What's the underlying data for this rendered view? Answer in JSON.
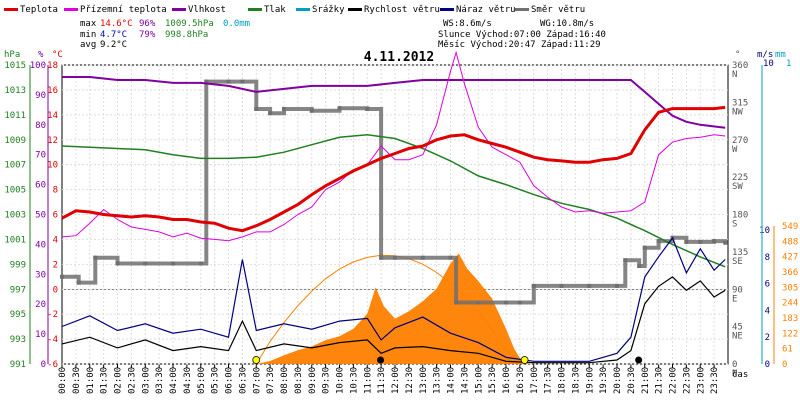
{
  "chart_data": {
    "type": "line",
    "title": "4.11.2012",
    "xlabel": "čas",
    "legend": [
      {
        "name": "Teplota",
        "color": "#e00000"
      },
      {
        "name": "Přízemní teplota",
        "color": "#e000e0"
      },
      {
        "name": "Vlhkost",
        "color": "#8000a0"
      },
      {
        "name": "Tlak",
        "color": "#208020"
      },
      {
        "name": "Srážky",
        "color": "#00a0c0"
      },
      {
        "name": "Rychlost větru",
        "color": "#000000"
      },
      {
        "name": "Náraz větru",
        "color": "#000080"
      },
      {
        "name": "Směr větru",
        "color": "#707070"
      }
    ],
    "stats": {
      "max_label": "max",
      "min_label": "min",
      "avg_label": "avg",
      "max_temp": "14.6°C",
      "max_hum": "96%",
      "max_press": "1009.5hPa",
      "max_rain": "0.0mm",
      "min_temp": "4.7°C",
      "min_hum": "79%",
      "min_press": "998.8hPa",
      "avg_temp": "9.2°C",
      "ws": "WS:8.6m/s",
      "wg": "WG:10.8m/s",
      "sun": "Slunce Východ:07:00  Západ:16:40",
      "moon": "Měsíc  Východ:20:47  Západ:11:29"
    },
    "axes": {
      "left_units": {
        "hpa": "hPa",
        "pct": "%",
        "deg": "°C"
      },
      "right_units": {
        "deg": "°",
        "ms": "m/s",
        "mm": "mm",
        "wm2": "W/m²"
      },
      "hpa_ticks": [
        "1015",
        "1013",
        "1011",
        "1009",
        "1007",
        "1005",
        "1003",
        "1001",
        "999",
        "997",
        "995",
        "993",
        "991"
      ],
      "pct_ticks": [
        "100",
        "90",
        "80",
        "70",
        "60",
        "50",
        "40",
        "30",
        "20",
        "10",
        "0"
      ],
      "temp_ticks": [
        "18",
        "16",
        "14",
        "12",
        "10",
        "8",
        "6",
        "4",
        "2",
        "0",
        "-2",
        "-4",
        "-6"
      ],
      "dir_ticks": [
        {
          "deg": "360",
          "lbl": "N"
        },
        {
          "deg": "315",
          "lbl": "NW"
        },
        {
          "deg": "270",
          "lbl": "W"
        },
        {
          "deg": "225",
          "lbl": "SW"
        },
        {
          "deg": "180",
          "lbl": "S"
        },
        {
          "deg": "135",
          "lbl": "SE"
        },
        {
          "deg": "90",
          "lbl": "E"
        },
        {
          "deg": "45",
          "lbl": "NE"
        },
        {
          "deg": "0",
          "lbl": "N"
        }
      ],
      "wind_top": "10",
      "rain_top": "1",
      "wind_ticks": [
        "10",
        "8",
        "6",
        "4",
        "2",
        "0"
      ],
      "sol_ticks": [
        "549",
        "488",
        "427",
        "366",
        "305",
        "244",
        "183",
        "122",
        "61",
        "0"
      ],
      "time_ticks": [
        "00:00",
        "00:30",
        "01:00",
        "01:30",
        "02:00",
        "02:30",
        "03:00",
        "03:30",
        "04:00",
        "04:30",
        "05:00",
        "05:30",
        "06:00",
        "06:30",
        "07:00",
        "07:30",
        "08:00",
        "08:30",
        "09:00",
        "09:30",
        "10:00",
        "10:30",
        "11:00",
        "11:30",
        "12:00",
        "12:30",
        "13:00",
        "13:30",
        "14:00",
        "14:30",
        "15:00",
        "15:30",
        "16:00",
        "16:30",
        "17:00",
        "17:30",
        "18:00",
        "18:30",
        "19:00",
        "19:30",
        "20:00",
        "20:30",
        "21:00",
        "21:30",
        "22:00",
        "22:30",
        "23:00",
        "23:30"
      ]
    },
    "series": {
      "temperature_c": [
        [
          0,
          5.7
        ],
        [
          0.5,
          6.3
        ],
        [
          1,
          6.2
        ],
        [
          1.5,
          6.0
        ],
        [
          2,
          5.9
        ],
        [
          2.5,
          5.8
        ],
        [
          3,
          5.9
        ],
        [
          3.5,
          5.8
        ],
        [
          4,
          5.6
        ],
        [
          4.5,
          5.6
        ],
        [
          5,
          5.4
        ],
        [
          5.5,
          5.3
        ],
        [
          6,
          4.9
        ],
        [
          6.5,
          4.7
        ],
        [
          7,
          5.1
        ],
        [
          7.5,
          5.6
        ],
        [
          8,
          6.2
        ],
        [
          8.5,
          6.8
        ],
        [
          9,
          7.6
        ],
        [
          9.5,
          8.3
        ],
        [
          10,
          8.9
        ],
        [
          10.5,
          9.5
        ],
        [
          11,
          10.0
        ],
        [
          11.5,
          10.5
        ],
        [
          12,
          10.9
        ],
        [
          12.5,
          11.3
        ],
        [
          13,
          11.5
        ],
        [
          13.5,
          12.0
        ],
        [
          14,
          12.3
        ],
        [
          14.5,
          12.4
        ],
        [
          15,
          12.0
        ],
        [
          15.5,
          11.7
        ],
        [
          16,
          11.4
        ],
        [
          16.5,
          11.0
        ],
        [
          17,
          10.6
        ],
        [
          17.5,
          10.4
        ],
        [
          18,
          10.3
        ],
        [
          18.5,
          10.2
        ],
        [
          19,
          10.2
        ],
        [
          19.5,
          10.4
        ],
        [
          20,
          10.5
        ],
        [
          20.5,
          10.9
        ],
        [
          21,
          12.8
        ],
        [
          21.5,
          14.2
        ],
        [
          22,
          14.5
        ],
        [
          22.5,
          14.5
        ],
        [
          23,
          14.5
        ],
        [
          23.5,
          14.5
        ],
        [
          23.9,
          14.6
        ]
      ],
      "ground_temp_c": [
        [
          0,
          4.2
        ],
        [
          0.5,
          4.3
        ],
        [
          1,
          5.3
        ],
        [
          1.5,
          6.4
        ],
        [
          2,
          5.6
        ],
        [
          2.5,
          5.0
        ],
        [
          3,
          4.8
        ],
        [
          3.5,
          4.6
        ],
        [
          4,
          4.2
        ],
        [
          4.5,
          4.5
        ],
        [
          5,
          4.1
        ],
        [
          5.5,
          4.0
        ],
        [
          6,
          3.9
        ],
        [
          6.5,
          4.2
        ],
        [
          7,
          4.6
        ],
        [
          7.5,
          4.6
        ],
        [
          8,
          5.2
        ],
        [
          8.5,
          6.0
        ],
        [
          9,
          6.6
        ],
        [
          9.5,
          8.0
        ],
        [
          10,
          8.6
        ],
        [
          10.5,
          9.6
        ],
        [
          11,
          10.0
        ],
        [
          11.5,
          11.5
        ],
        [
          12,
          10.4
        ],
        [
          12.5,
          10.4
        ],
        [
          13,
          10.8
        ],
        [
          13.5,
          13.2
        ],
        [
          14,
          17.5
        ],
        [
          14.2,
          19.0
        ],
        [
          14.5,
          16.5
        ],
        [
          15,
          13.0
        ],
        [
          15.5,
          11.4
        ],
        [
          16,
          10.8
        ],
        [
          16.5,
          10.2
        ],
        [
          17,
          8.3
        ],
        [
          17.5,
          7.4
        ],
        [
          18,
          6.6
        ],
        [
          18.5,
          6.2
        ],
        [
          19,
          6.3
        ],
        [
          19.5,
          6.1
        ],
        [
          20,
          6.2
        ],
        [
          20.5,
          6.3
        ],
        [
          21,
          7.0
        ],
        [
          21.5,
          10.8
        ],
        [
          22,
          11.8
        ],
        [
          22.5,
          12.1
        ],
        [
          23,
          12.2
        ],
        [
          23.5,
          12.4
        ],
        [
          23.9,
          12.3
        ]
      ],
      "humidity_pct": [
        [
          0,
          96
        ],
        [
          1,
          96
        ],
        [
          2,
          95
        ],
        [
          3,
          95
        ],
        [
          4,
          94
        ],
        [
          5,
          94
        ],
        [
          6,
          93
        ],
        [
          7,
          91
        ],
        [
          8,
          92
        ],
        [
          9,
          93
        ],
        [
          10,
          93
        ],
        [
          11,
          93
        ],
        [
          12,
          94
        ],
        [
          13,
          95
        ],
        [
          14,
          95
        ],
        [
          15,
          95
        ],
        [
          16,
          95
        ],
        [
          17,
          95
        ],
        [
          18,
          95
        ],
        [
          19,
          95
        ],
        [
          20,
          95
        ],
        [
          20.5,
          95
        ],
        [
          21,
          91
        ],
        [
          21.5,
          87
        ],
        [
          22,
          83
        ],
        [
          22.5,
          81
        ],
        [
          23,
          80
        ],
        [
          23.9,
          79
        ]
      ],
      "pressure_hpa": [
        [
          0,
          1008.5
        ],
        [
          1,
          1008.4
        ],
        [
          2,
          1008.3
        ],
        [
          3,
          1008.2
        ],
        [
          4,
          1007.8
        ],
        [
          5,
          1007.5
        ],
        [
          6,
          1007.5
        ],
        [
          7,
          1007.6
        ],
        [
          8,
          1008.0
        ],
        [
          9,
          1008.6
        ],
        [
          10,
          1009.2
        ],
        [
          11,
          1009.4
        ],
        [
          12,
          1009.1
        ],
        [
          13,
          1008.3
        ],
        [
          14,
          1007.3
        ],
        [
          15,
          1006.1
        ],
        [
          16,
          1005.4
        ],
        [
          17,
          1004.6
        ],
        [
          18,
          1003.9
        ],
        [
          19,
          1003.4
        ],
        [
          20,
          1002.7
        ],
        [
          21,
          1001.7
        ],
        [
          22,
          1000.6
        ],
        [
          23,
          999.6
        ],
        [
          23.9,
          998.8
        ]
      ],
      "wind_speed_ms": [
        [
          0,
          1.5
        ],
        [
          1,
          2.0
        ],
        [
          2,
          1.2
        ],
        [
          3,
          1.8
        ],
        [
          4,
          1.0
        ],
        [
          5,
          1.3
        ],
        [
          6,
          1.0
        ],
        [
          6.5,
          3.2
        ],
        [
          7,
          1.0
        ],
        [
          8,
          1.5
        ],
        [
          9,
          1.2
        ],
        [
          10,
          1.6
        ],
        [
          11,
          1.8
        ],
        [
          11.5,
          0.8
        ],
        [
          12,
          1.2
        ],
        [
          13,
          1.3
        ],
        [
          14,
          1.0
        ],
        [
          15,
          0.8
        ],
        [
          16,
          0.2
        ],
        [
          17,
          0.1
        ],
        [
          18,
          0.1
        ],
        [
          19,
          0.1
        ],
        [
          20,
          0.3
        ],
        [
          20.5,
          1.0
        ],
        [
          21,
          4.5
        ],
        [
          21.5,
          5.8
        ],
        [
          22,
          6.5
        ],
        [
          22.5,
          5.5
        ],
        [
          23,
          6.2
        ],
        [
          23.5,
          5.0
        ],
        [
          23.9,
          5.5
        ]
      ],
      "wind_gust_ms": [
        [
          0,
          2.8
        ],
        [
          1,
          3.6
        ],
        [
          2,
          2.5
        ],
        [
          3,
          3.0
        ],
        [
          4,
          2.3
        ],
        [
          5,
          2.6
        ],
        [
          6,
          2.0
        ],
        [
          6.5,
          7.8
        ],
        [
          7,
          2.5
        ],
        [
          8,
          3.0
        ],
        [
          9,
          2.6
        ],
        [
          10,
          3.2
        ],
        [
          11,
          3.4
        ],
        [
          11.5,
          1.8
        ],
        [
          12,
          2.7
        ],
        [
          13,
          3.5
        ],
        [
          14,
          2.3
        ],
        [
          15,
          1.6
        ],
        [
          16,
          0.5
        ],
        [
          17,
          0.2
        ],
        [
          18,
          0.2
        ],
        [
          19,
          0.2
        ],
        [
          20,
          0.8
        ],
        [
          20.5,
          2.0
        ],
        [
          21,
          6.5
        ],
        [
          21.5,
          8.0
        ],
        [
          22,
          9.4
        ],
        [
          22.5,
          6.8
        ],
        [
          23,
          8.6
        ],
        [
          23.5,
          7.0
        ],
        [
          23.9,
          7.8
        ]
      ],
      "wind_dir_deg": [
        [
          0,
          105
        ],
        [
          0.6,
          98
        ],
        [
          1.2,
          128
        ],
        [
          2,
          121
        ],
        [
          3,
          121
        ],
        [
          4,
          121
        ],
        [
          5,
          121
        ],
        [
          5.2,
          340
        ],
        [
          6,
          340
        ],
        [
          6.5,
          340
        ],
        [
          7,
          307
        ],
        [
          7.5,
          302
        ],
        [
          8,
          307
        ],
        [
          9,
          305
        ],
        [
          10,
          308
        ],
        [
          11,
          307
        ],
        [
          11.5,
          128
        ],
        [
          12,
          128
        ],
        [
          13,
          128
        ],
        [
          14,
          128
        ],
        [
          14.2,
          74
        ],
        [
          15,
          74
        ],
        [
          16,
          74
        ],
        [
          16.5,
          74
        ],
        [
          17,
          94
        ],
        [
          18,
          94
        ],
        [
          19,
          94
        ],
        [
          20,
          94
        ],
        [
          20.3,
          125
        ],
        [
          20.8,
          118
        ],
        [
          21,
          140
        ],
        [
          21.5,
          148
        ],
        [
          22,
          152
        ],
        [
          22.5,
          147
        ],
        [
          23,
          147
        ],
        [
          23.5,
          148
        ],
        [
          23.9,
          146
        ]
      ],
      "solar_wm2": [
        [
          0,
          0
        ],
        [
          7,
          0
        ],
        [
          7.5,
          12
        ],
        [
          8,
          35
        ],
        [
          8.5,
          55
        ],
        [
          9,
          70
        ],
        [
          9.5,
          95
        ],
        [
          10,
          110
        ],
        [
          10.5,
          140
        ],
        [
          11,
          200
        ],
        [
          11.3,
          305
        ],
        [
          11.6,
          230
        ],
        [
          12,
          180
        ],
        [
          12.5,
          210
        ],
        [
          13,
          250
        ],
        [
          13.5,
          300
        ],
        [
          14,
          400
        ],
        [
          14.3,
          440
        ],
        [
          14.6,
          380
        ],
        [
          15,
          330
        ],
        [
          15.5,
          260
        ],
        [
          16,
          140
        ],
        [
          16.3,
          60
        ],
        [
          16.6,
          5
        ],
        [
          17,
          0
        ],
        [
          23.9,
          0
        ]
      ],
      "solar_theoretical_wm2": [
        [
          7.0,
          0
        ],
        [
          7.5,
          90
        ],
        [
          8,
          165
        ],
        [
          8.5,
          232
        ],
        [
          9,
          290
        ],
        [
          9.5,
          339
        ],
        [
          10,
          378
        ],
        [
          10.5,
          406
        ],
        [
          11,
          424
        ],
        [
          11.5,
          433
        ],
        [
          12,
          431
        ],
        [
          12.5,
          419
        ],
        [
          13,
          397
        ],
        [
          13.5,
          364
        ],
        [
          14,
          322
        ],
        [
          14.5,
          270
        ],
        [
          15,
          208
        ],
        [
          15.5,
          137
        ],
        [
          16,
          57
        ],
        [
          16.67,
          0
        ]
      ]
    },
    "markers": [
      {
        "type": "sunrise",
        "time": 7.0
      },
      {
        "type": "sunset",
        "time": 16.67
      },
      {
        "type": "moonset",
        "time": 11.48
      },
      {
        "type": "moonrise",
        "time": 20.78
      }
    ]
  }
}
